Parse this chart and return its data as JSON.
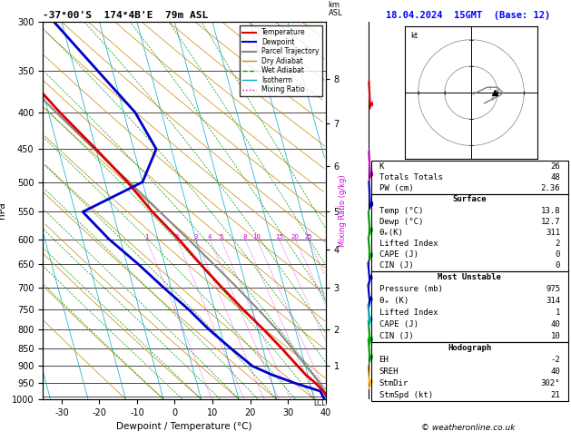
{
  "title_left": "-37°00'S  174°4B'E  79m ASL",
  "title_right": "18.04.2024  15GMT  (Base: 12)",
  "xlabel": "Dewpoint / Temperature (°C)",
  "ylabel_left": "hPa",
  "pressure_ticks": [
    300,
    350,
    400,
    450,
    500,
    550,
    600,
    650,
    700,
    750,
    800,
    850,
    900,
    950,
    1000
  ],
  "temp_ticks": [
    -30,
    -20,
    -10,
    0,
    10,
    20,
    30,
    40
  ],
  "pmin": 300,
  "pmax": 1000,
  "tmin": -35,
  "tmax": 40,
  "skew_factor": 27,
  "bg_color": "#ffffff",
  "temperature_color": "#dd0000",
  "dewpoint_color": "#0000cc",
  "parcel_color": "#888888",
  "dry_adiabat_color": "#cc8800",
  "wet_adiabat_color": "#009900",
  "isotherm_color": "#00aacc",
  "mixing_ratio_color": "#cc00cc",
  "temp_profile_p": [
    1000,
    975,
    950,
    925,
    900,
    850,
    800,
    750,
    700,
    650,
    600,
    550,
    500,
    450,
    400,
    350,
    300
  ],
  "temp_profile_t": [
    13.8,
    13.0,
    11.5,
    9.5,
    8.0,
    5.0,
    1.5,
    -2.5,
    -6.5,
    -10.5,
    -14.5,
    -19.5,
    -24.0,
    -30.0,
    -37.0,
    -44.0,
    -54.0
  ],
  "dew_profile_p": [
    1000,
    975,
    950,
    925,
    900,
    850,
    800,
    750,
    700,
    650,
    600,
    550,
    500,
    450,
    400,
    350,
    300
  ],
  "dew_profile_t": [
    12.7,
    12.2,
    6.0,
    0.5,
    -4.0,
    -8.5,
    -13.0,
    -17.0,
    -22.0,
    -27.0,
    -33.0,
    -38.0,
    -20.0,
    -14.0,
    -17.0,
    -24.0,
    -32.0
  ],
  "parcel_profile_p": [
    1000,
    975,
    950,
    925,
    900,
    850,
    800,
    750,
    700,
    650,
    600,
    550,
    500,
    450,
    400,
    350,
    300
  ],
  "parcel_profile_t": [
    13.8,
    13.2,
    12.5,
    11.5,
    10.2,
    7.8,
    5.0,
    1.5,
    -2.5,
    -7.0,
    -12.0,
    -17.5,
    -23.5,
    -30.5,
    -38.0,
    -46.0,
    -55.5
  ],
  "mixing_ratio_lines": [
    1,
    2,
    3,
    4,
    5,
    8,
    10,
    15,
    20,
    25
  ],
  "km_levels": [
    1,
    2,
    3,
    4,
    5,
    6,
    7,
    8
  ],
  "km_pressures": [
    900,
    800,
    700,
    620,
    550,
    475,
    415,
    360
  ],
  "lcl_pressure": 992,
  "info_K": 26,
  "info_TT": 48,
  "info_PW": 2.36,
  "surf_temp": 13.8,
  "surf_dewp": 12.7,
  "surf_theta_e": 311,
  "surf_li": 2,
  "surf_cape": 0,
  "surf_cin": 0,
  "mu_pressure": 975,
  "mu_theta_e": 314,
  "mu_li": 1,
  "mu_cape": 40,
  "mu_cin": 10,
  "hodo_EH": -2,
  "hodo_SREH": 40,
  "hodo_StmDir": "302°",
  "hodo_StmSpd": 21,
  "wind_barb_pressures": [
    975,
    900,
    850,
    800,
    750,
    700,
    650,
    600,
    550,
    500,
    400,
    300
  ],
  "wind_barb_colors": [
    "#ffaa00",
    "#00aa00",
    "#00aa00",
    "#00aacc",
    "#0000cc",
    "#0000cc",
    "#00aa00",
    "#00aa00",
    "#0000cc",
    "#cc00cc",
    "#dd0000",
    "#cc00cc"
  ],
  "wind_barb_u": [
    2,
    3,
    3,
    3,
    3,
    3,
    3,
    3,
    3,
    3,
    3,
    4
  ],
  "wind_barb_v": [
    3,
    4,
    4,
    5,
    5,
    5,
    4,
    4,
    3,
    3,
    3,
    3
  ],
  "hodo_wind_u": [
    2,
    4,
    6,
    8,
    9,
    10,
    11,
    12,
    11,
    9,
    7,
    5
  ],
  "hodo_wind_v": [
    0,
    1,
    2,
    2,
    2,
    2,
    1,
    0,
    -1,
    -2,
    -3,
    -4
  ],
  "storm_u": 9,
  "storm_v": 0
}
